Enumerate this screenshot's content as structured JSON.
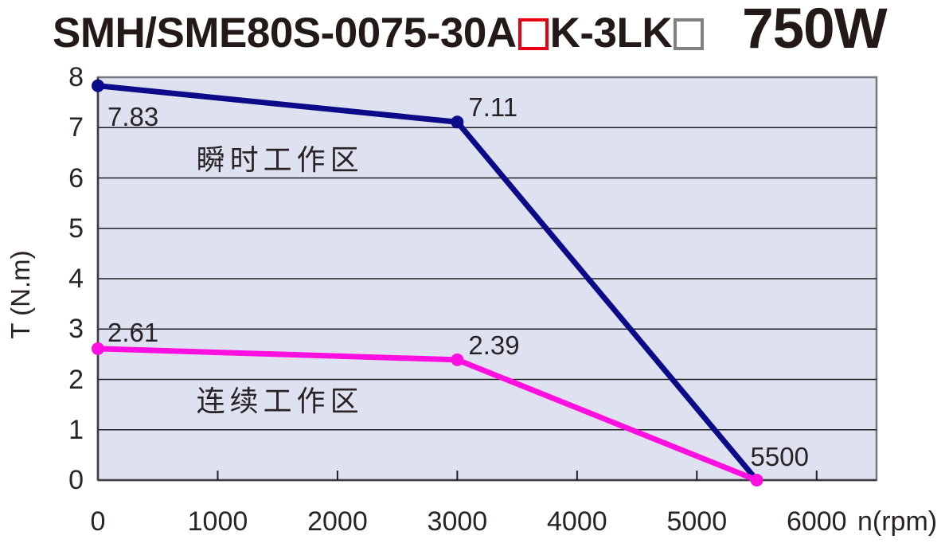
{
  "title": {
    "model_part1": "SMH/SME80S-0075-30A",
    "model_part2": "K-3LK",
    "power": "750W"
  },
  "colors": {
    "red_box_border": "#e60012",
    "gray_box_border": "#808080",
    "plot_background": "#dee1f0",
    "gridline": "#1e1e22",
    "plot_border": "#77777f",
    "plot_border_dark": "#3c3c42",
    "peak_line": "#0b0b8a",
    "continuous_line": "#ff10e0"
  },
  "chart_data": {
    "type": "line",
    "title": "SMH/SME80S-0075-30A□K-3LK□ 750W",
    "xlabel": "n(rpm)",
    "ylabel": "T (N.m)",
    "xlim": [
      0,
      6500
    ],
    "ylim": [
      0,
      8
    ],
    "x_ticks": [
      0,
      1000,
      2000,
      3000,
      4000,
      5000,
      6000
    ],
    "y_ticks": [
      0,
      1,
      2,
      3,
      4,
      5,
      6,
      7,
      8
    ],
    "grid": "horizontal",
    "legend_position": "none",
    "series": [
      {
        "name": "瞬时工作区",
        "color": "#0b0b8a",
        "points": [
          {
            "x": 0,
            "y": 7.83,
            "label": "7.83",
            "label_dx": 12,
            "label_dy": 22,
            "marker": true
          },
          {
            "x": 3000,
            "y": 7.11,
            "label": "7.11",
            "label_dx": 14,
            "label_dy": -35,
            "marker": true
          },
          {
            "x": 5500,
            "y": 0,
            "marker": false
          }
        ]
      },
      {
        "name": "连续工作区",
        "color": "#ff10e0",
        "points": [
          {
            "x": 0,
            "y": 2.61,
            "label": "2.61",
            "label_dx": 12,
            "label_dy": -37,
            "marker": true
          },
          {
            "x": 3000,
            "y": 2.39,
            "label": "2.39",
            "label_dx": 14,
            "label_dy": -35,
            "marker": true
          },
          {
            "x": 5500,
            "y": 0,
            "label": "5500",
            "label_dx": -8,
            "label_dy": -46,
            "marker": true
          }
        ]
      }
    ],
    "region_labels": [
      {
        "text": "瞬时工作区",
        "x": 1520,
        "y": 6.4
      },
      {
        "text": "连续工作区",
        "x": 1520,
        "y": 1.61
      }
    ]
  }
}
